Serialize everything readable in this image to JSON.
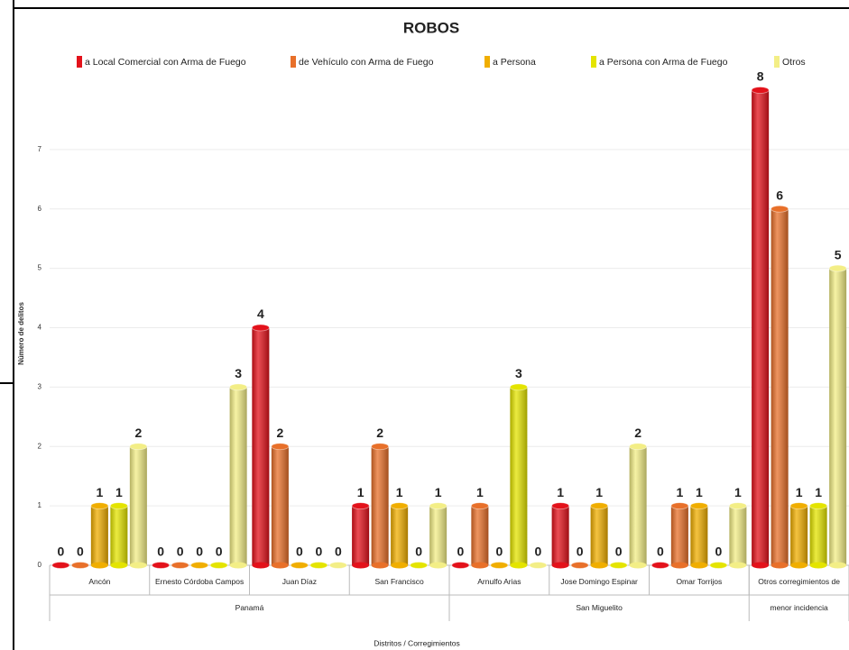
{
  "chart_data": {
    "type": "bar",
    "title": "ROBOS",
    "y_axis_label": "Número de delitos",
    "x_axis_label": "Distritos / Corregimientos",
    "categories": [
      "Ancón",
      "Ernesto Córdoba Campos",
      "Juan Díaz",
      "San Francisco",
      "Arnulfo Arias",
      "Jose Domingo Espinar",
      "Omar Torrijos",
      "Otros corregimientos de menor incidencia"
    ],
    "groups": [
      {
        "name": "Panamá",
        "count": 4
      },
      {
        "name": "San Miguelito",
        "count": 3
      }
    ],
    "series": [
      {
        "name": "a Local Comercial con Arma de Fuego",
        "color": "#e3121b",
        "values": [
          0,
          0,
          4,
          1,
          0,
          1,
          0,
          8
        ]
      },
      {
        "name": "de Vehículo con Arma de Fuego",
        "color": "#e8702a",
        "values": [
          0,
          0,
          2,
          2,
          1,
          0,
          1,
          6
        ]
      },
      {
        "name": "a Persona",
        "color": "#f0ae00",
        "values": [
          1,
          0,
          0,
          1,
          0,
          1,
          1,
          1
        ]
      },
      {
        "name": "a Persona con Arma de Fuego",
        "color": "#e4e400",
        "values": [
          1,
          0,
          0,
          0,
          3,
          0,
          0,
          1
        ]
      },
      {
        "name": "Otros",
        "color": "#f3ee86",
        "values": [
          2,
          3,
          0,
          1,
          0,
          2,
          1,
          5
        ]
      }
    ],
    "ylim": [
      0,
      8
    ],
    "yticks": [
      0,
      1,
      2,
      3,
      4,
      5,
      6,
      7
    ],
    "grid": true,
    "legend": "top"
  }
}
